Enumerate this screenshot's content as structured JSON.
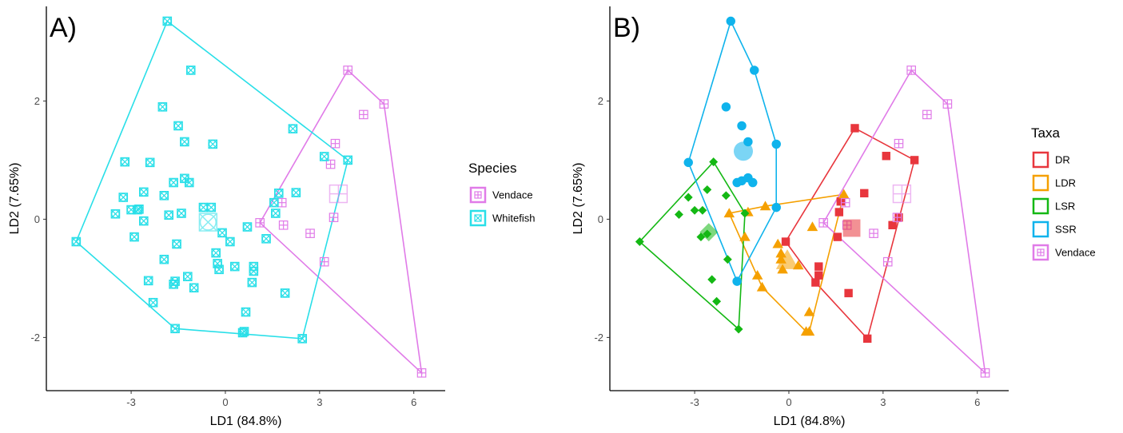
{
  "chart_data": [
    {
      "type": "scatter",
      "panel_label": "A)",
      "xlabel": "LD1 (84.8%)",
      "ylabel": "LD2 (7.65%)",
      "xticks": [
        -3,
        0,
        3,
        6
      ],
      "yticks": [
        -2,
        0,
        2
      ],
      "xlim": [
        -5.7,
        7.0
      ],
      "ylim": [
        -2.9,
        3.6
      ],
      "grid": false,
      "legend": {
        "title": "Species",
        "position": "right"
      },
      "hulls": true,
      "series": [
        {
          "name": "Vendace",
          "color": "#e07be8",
          "marker": "square-plus",
          "centroid": [
            3.6,
            0.43
          ],
          "points": [
            [
              3.9,
              2.52
            ],
            [
              5.05,
              1.95
            ],
            [
              4.4,
              1.77
            ],
            [
              3.5,
              1.28
            ],
            [
              3.35,
              0.93
            ],
            [
              3.45,
              0.03
            ],
            [
              1.8,
              0.28
            ],
            [
              1.1,
              -0.06
            ],
            [
              1.85,
              -0.1
            ],
            [
              2.7,
              -0.24
            ],
            [
              3.15,
              -0.72
            ],
            [
              6.25,
              -2.6
            ]
          ]
        },
        {
          "name": "Whitefish",
          "color": "#29dfe8",
          "marker": "square-cross",
          "centroid": [
            -0.55,
            -0.05
          ],
          "points": [
            [
              -1.85,
              3.35
            ],
            [
              -1.1,
              2.52
            ],
            [
              -2.0,
              1.9
            ],
            [
              -1.5,
              1.58
            ],
            [
              -1.3,
              1.31
            ],
            [
              -0.4,
              1.27
            ],
            [
              2.15,
              1.53
            ],
            [
              3.15,
              1.06
            ],
            [
              3.9,
              1.0
            ],
            [
              -3.2,
              0.97
            ],
            [
              -2.4,
              0.96
            ],
            [
              -1.3,
              0.69
            ],
            [
              -1.15,
              0.62
            ],
            [
              -1.65,
              0.62
            ],
            [
              -2.6,
              0.46
            ],
            [
              -1.95,
              0.4
            ],
            [
              -3.25,
              0.37
            ],
            [
              -3.0,
              0.16
            ],
            [
              -2.8,
              0.16
            ],
            [
              -2.75,
              0.17
            ],
            [
              -3.5,
              0.09
            ],
            [
              -1.8,
              0.07
            ],
            [
              -1.4,
              0.1
            ],
            [
              -0.7,
              0.2
            ],
            [
              -0.45,
              0.2
            ],
            [
              -2.6,
              -0.03
            ],
            [
              -0.1,
              -0.23
            ],
            [
              0.15,
              -0.38
            ],
            [
              0.7,
              -0.13
            ],
            [
              1.7,
              0.44
            ],
            [
              2.25,
              0.45
            ],
            [
              1.55,
              0.28
            ],
            [
              1.6,
              0.1
            ],
            [
              1.3,
              -0.33
            ],
            [
              -2.9,
              -0.3
            ],
            [
              -1.55,
              -0.42
            ],
            [
              -1.95,
              -0.68
            ],
            [
              -0.3,
              -0.57
            ],
            [
              -0.25,
              -0.75
            ],
            [
              -0.2,
              -0.85
            ],
            [
              0.3,
              -0.8
            ],
            [
              0.9,
              -0.8
            ],
            [
              0.9,
              -0.88
            ],
            [
              0.85,
              -1.07
            ],
            [
              -1.2,
              -0.97
            ],
            [
              -1.6,
              -1.05
            ],
            [
              -1.65,
              -1.1
            ],
            [
              -2.45,
              -1.04
            ],
            [
              -1.0,
              -1.16
            ],
            [
              1.9,
              -1.25
            ],
            [
              -2.3,
              -1.41
            ],
            [
              0.65,
              -1.57
            ],
            [
              -4.75,
              -0.38
            ],
            [
              -1.6,
              -1.85
            ],
            [
              0.6,
              -1.9
            ],
            [
              0.55,
              -1.92
            ],
            [
              2.45,
              -2.02
            ]
          ]
        }
      ]
    },
    {
      "type": "scatter",
      "panel_label": "B)",
      "xlabel": "LD1 (84.8%)",
      "ylabel": "LD2 (7.65%)",
      "xticks": [
        -3,
        0,
        3,
        6
      ],
      "yticks": [
        -2,
        0,
        2
      ],
      "xlim": [
        -5.7,
        7.0
      ],
      "ylim": [
        -2.9,
        3.6
      ],
      "grid": false,
      "legend": {
        "title": "Taxa",
        "position": "right"
      },
      "hulls": true,
      "series": [
        {
          "name": "DR",
          "color": "#e8363d",
          "marker": "square",
          "centroid": [
            2.0,
            -0.15
          ],
          "points": [
            [
              2.1,
              1.54
            ],
            [
              2.4,
              0.44
            ],
            [
              3.1,
              1.07
            ],
            [
              4.0,
              1.0
            ],
            [
              3.5,
              0.03
            ],
            [
              3.3,
              -0.1
            ],
            [
              1.6,
              0.12
            ],
            [
              1.65,
              0.3
            ],
            [
              1.55,
              -0.3
            ],
            [
              -0.1,
              -0.38
            ],
            [
              0.95,
              -0.8
            ],
            [
              0.95,
              -0.95
            ],
            [
              0.85,
              -1.07
            ],
            [
              1.9,
              -1.25
            ],
            [
              2.5,
              -2.02
            ]
          ]
        },
        {
          "name": "LDR",
          "color": "#f5a000",
          "marker": "triangle",
          "centroid": [
            -0.05,
            -0.7
          ],
          "points": [
            [
              1.75,
              0.42
            ],
            [
              -0.75,
              0.22
            ],
            [
              -1.9,
              0.1
            ],
            [
              -1.3,
              0.12
            ],
            [
              0.75,
              -0.13
            ],
            [
              -1.4,
              -0.3
            ],
            [
              -0.35,
              -0.42
            ],
            [
              -0.25,
              -0.58
            ],
            [
              -0.25,
              -0.68
            ],
            [
              -0.2,
              -0.85
            ],
            [
              0.3,
              -0.78
            ],
            [
              -1.0,
              -0.95
            ],
            [
              -0.85,
              -1.15
            ],
            [
              0.65,
              -1.57
            ],
            [
              0.65,
              -1.9
            ],
            [
              0.55,
              -1.9
            ]
          ]
        },
        {
          "name": "LSR",
          "color": "#14b814",
          "marker": "diamond",
          "centroid": [
            -2.55,
            -0.22
          ],
          "points": [
            [
              -2.4,
              0.97
            ],
            [
              -2.6,
              0.5
            ],
            [
              -2.0,
              0.4
            ],
            [
              -3.2,
              0.37
            ],
            [
              -3.0,
              0.15
            ],
            [
              -2.75,
              0.15
            ],
            [
              -3.5,
              0.08
            ],
            [
              -1.4,
              0.1
            ],
            [
              -2.8,
              -0.3
            ],
            [
              -2.6,
              -0.25
            ],
            [
              -1.95,
              -0.68
            ],
            [
              -2.45,
              -1.02
            ],
            [
              -2.3,
              -1.39
            ],
            [
              -4.75,
              -0.38
            ],
            [
              -1.6,
              -1.86
            ]
          ]
        },
        {
          "name": "SSR",
          "color": "#0fb3ec",
          "marker": "circle",
          "centroid": [
            -1.45,
            1.15
          ],
          "points": [
            [
              -1.85,
              3.35
            ],
            [
              -1.1,
              2.52
            ],
            [
              -2.0,
              1.9
            ],
            [
              -1.5,
              1.58
            ],
            [
              -1.3,
              1.31
            ],
            [
              -0.4,
              1.27
            ],
            [
              -1.5,
              0.65
            ],
            [
              -1.3,
              0.7
            ],
            [
              -1.15,
              0.62
            ],
            [
              -1.65,
              0.62
            ],
            [
              -3.2,
              0.96
            ],
            [
              -0.4,
              0.2
            ],
            [
              -1.65,
              -1.05
            ]
          ]
        },
        {
          "name": "Vendace",
          "color": "#e07be8",
          "marker": "square-plus",
          "centroid": [
            3.6,
            0.43
          ],
          "points": [
            [
              3.9,
              2.52
            ],
            [
              5.05,
              1.95
            ],
            [
              4.4,
              1.77
            ],
            [
              3.5,
              1.28
            ],
            [
              3.45,
              0.03
            ],
            [
              1.8,
              0.28
            ],
            [
              1.1,
              -0.06
            ],
            [
              1.85,
              -0.1
            ],
            [
              2.7,
              -0.24
            ],
            [
              3.15,
              -0.72
            ],
            [
              6.25,
              -2.6
            ]
          ]
        }
      ]
    }
  ]
}
